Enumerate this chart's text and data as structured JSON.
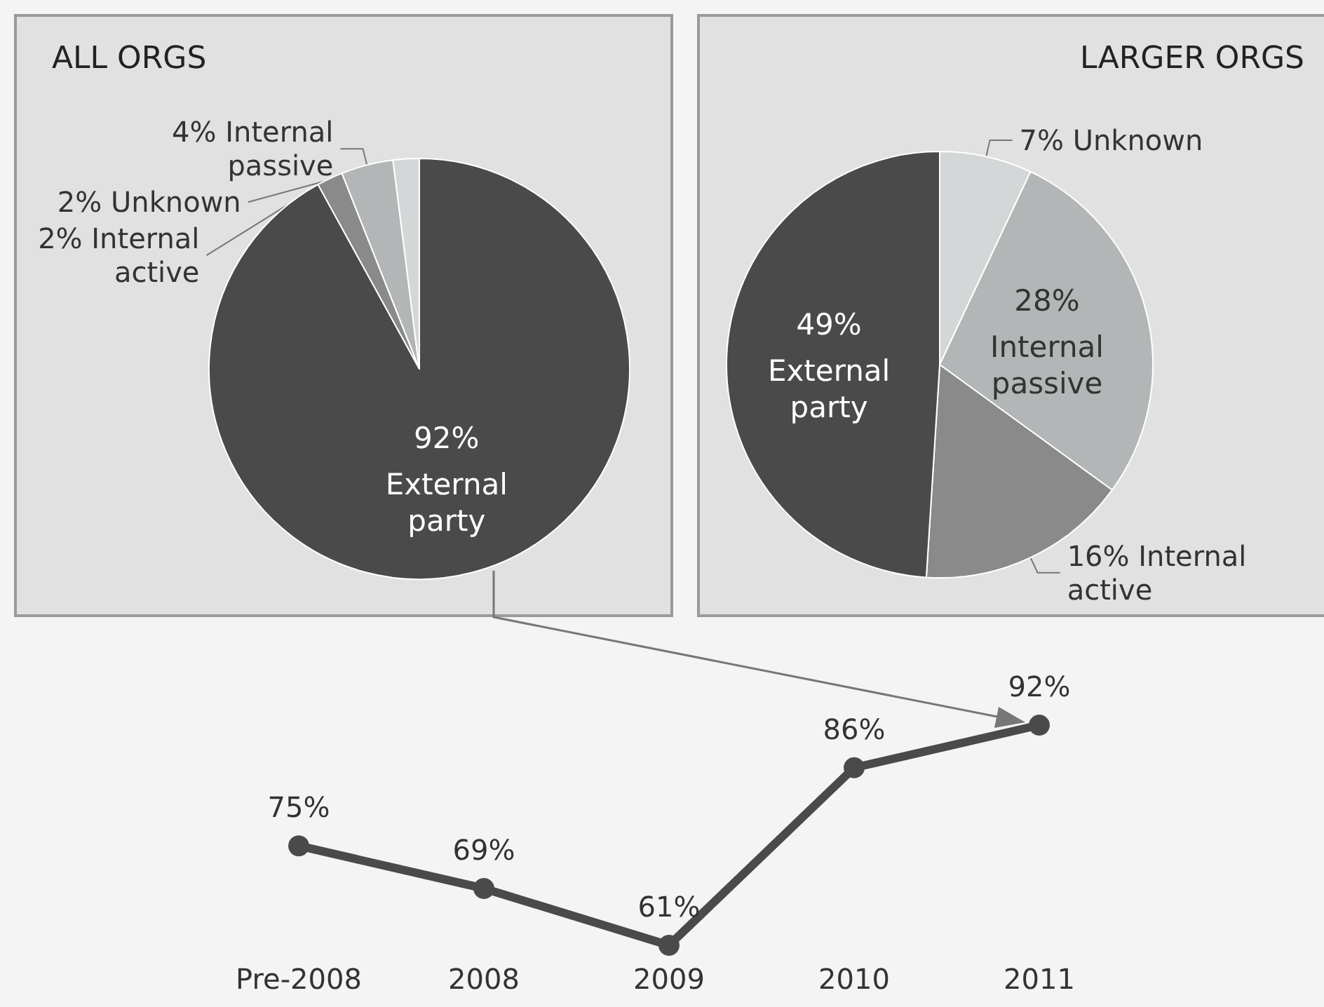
{
  "chart_data": [
    {
      "type": "pie",
      "title": "ALL ORGS",
      "categories": [
        "External party",
        "Internal active",
        "Internal passive",
        "Unknown"
      ],
      "values": [
        92,
        2,
        4,
        2
      ],
      "colors": [
        "#4a4a4a",
        "#8a8a8a",
        "#b3b6b6",
        "#d3d7d7"
      ],
      "value_labels": [
        "92%",
        "2%",
        "4%",
        "2%"
      ]
    },
    {
      "type": "pie",
      "title": "LARGER ORGS",
      "categories": [
        "Unknown",
        "Internal passive",
        "Internal active",
        "External party"
      ],
      "values": [
        7,
        28,
        16,
        49
      ],
      "colors": [
        "#d3d7d7",
        "#b3b6b6",
        "#8a8a8a",
        "#4a4a4a"
      ],
      "value_labels": [
        "7%",
        "28%",
        "16%",
        "49%"
      ]
    },
    {
      "type": "line",
      "categories": [
        "Pre-2008",
        "2008",
        "2009",
        "2010",
        "2011"
      ],
      "series": [
        {
          "color": "#4a4a4a",
          "values": [
            75,
            69,
            61,
            86,
            92
          ],
          "value_labels": [
            "75%",
            "69%",
            "61%",
            "86%",
            "92%"
          ]
        }
      ],
      "marker": "circle",
      "line_style": "solid"
    }
  ]
}
